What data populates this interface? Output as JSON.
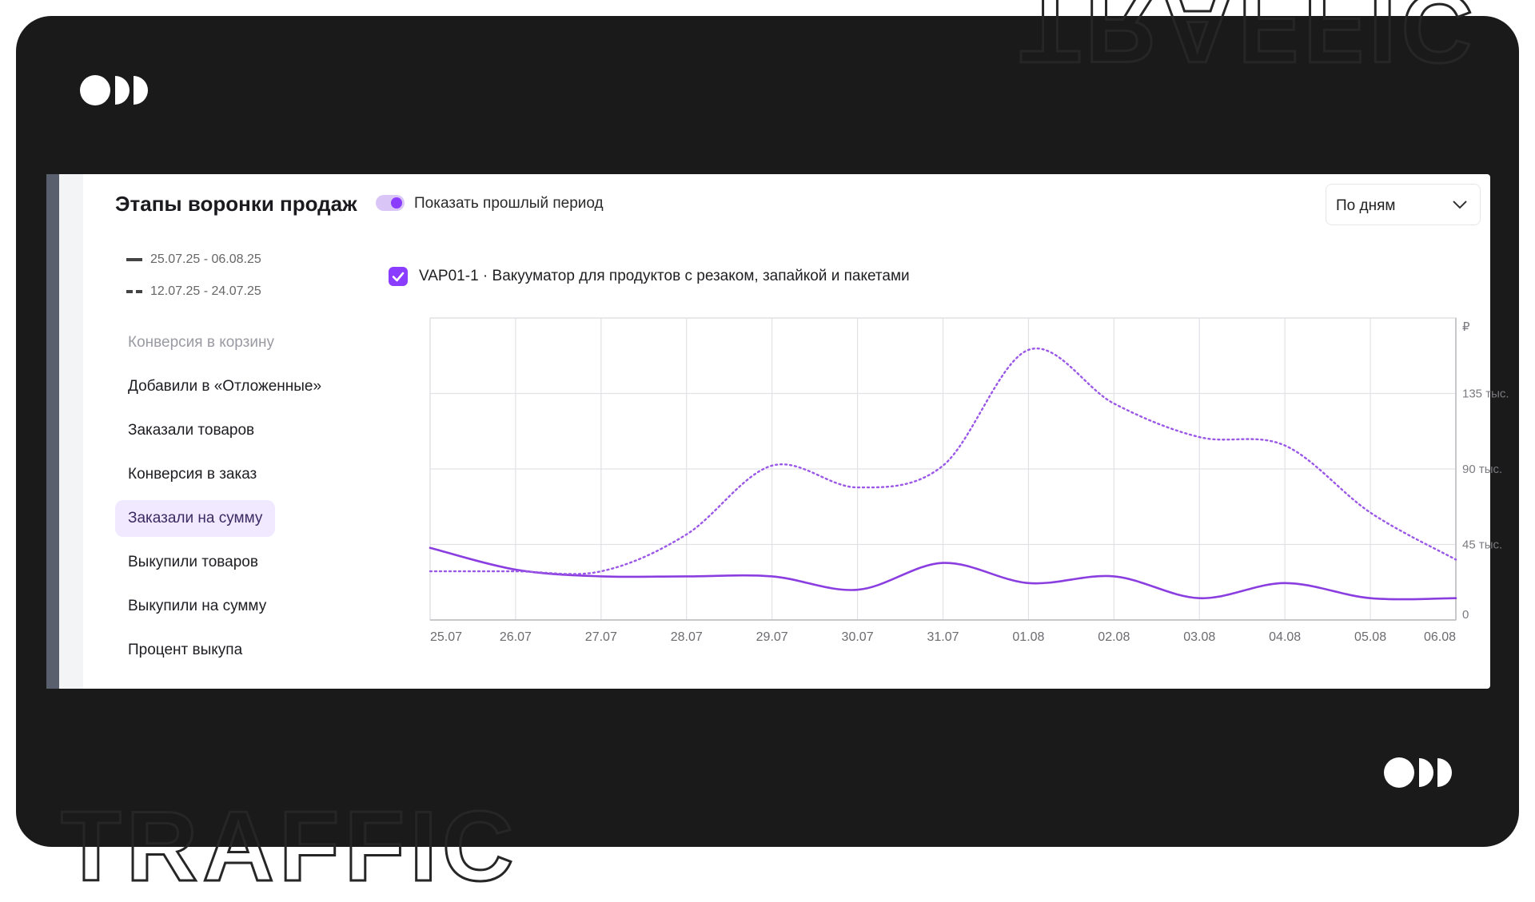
{
  "panel": {
    "title": "Этапы воронки продаж",
    "toggle_label": "Показать прошлый период",
    "period_select": "По дням",
    "legend": [
      {
        "label": "25.07.25 - 06.08.25",
        "style": "solid"
      },
      {
        "label": "12.07.25 - 24.07.25",
        "style": "dashed"
      }
    ],
    "metrics": [
      {
        "label": "Конверсия в корзину",
        "state": "muted"
      },
      {
        "label": "Добавили в «Отложенные»",
        "state": "normal"
      },
      {
        "label": "Заказали товаров",
        "state": "normal"
      },
      {
        "label": "Конверсия в заказ",
        "state": "normal"
      },
      {
        "label": "Заказали на сумму",
        "state": "active"
      },
      {
        "label": "Выкупили товаров",
        "state": "normal"
      },
      {
        "label": "Выкупили на сумму",
        "state": "normal"
      },
      {
        "label": "Процент выкупа",
        "state": "normal"
      }
    ],
    "product_label": "VAP01-1 · Вакууматор для продуктов с резаком, запайкой и пакетами"
  },
  "colors": {
    "frame": "#1a1a1a",
    "accent": "#8b3dff",
    "active_bg": "#f1e9ff",
    "grid": "#e2e2e6"
  },
  "chart_data": {
    "type": "line",
    "categories": [
      "25.07",
      "26.07",
      "27.07",
      "28.07",
      "29.07",
      "30.07",
      "31.07",
      "01.08",
      "02.08",
      "03.08",
      "04.08",
      "05.08",
      "06.08"
    ],
    "y_unit": "₽",
    "y_ticks": [
      {
        "value": 0,
        "label": "0"
      },
      {
        "value": 45000,
        "label": "45 тыс."
      },
      {
        "value": 90000,
        "label": "90 тыс."
      },
      {
        "value": 135000,
        "label": "135 тыс."
      }
    ],
    "ylim": [
      0,
      180000
    ],
    "grid": true,
    "series": [
      {
        "style": "solid",
        "values": [
          43000,
          30000,
          26000,
          26000,
          26000,
          18000,
          34000,
          22000,
          26000,
          13000,
          22000,
          13000,
          13000
        ]
      },
      {
        "style": "dotted",
        "values": [
          29000,
          29000,
          29000,
          51000,
          92000,
          79000,
          92000,
          161000,
          129000,
          109000,
          104000,
          64000,
          36000
        ]
      }
    ]
  }
}
